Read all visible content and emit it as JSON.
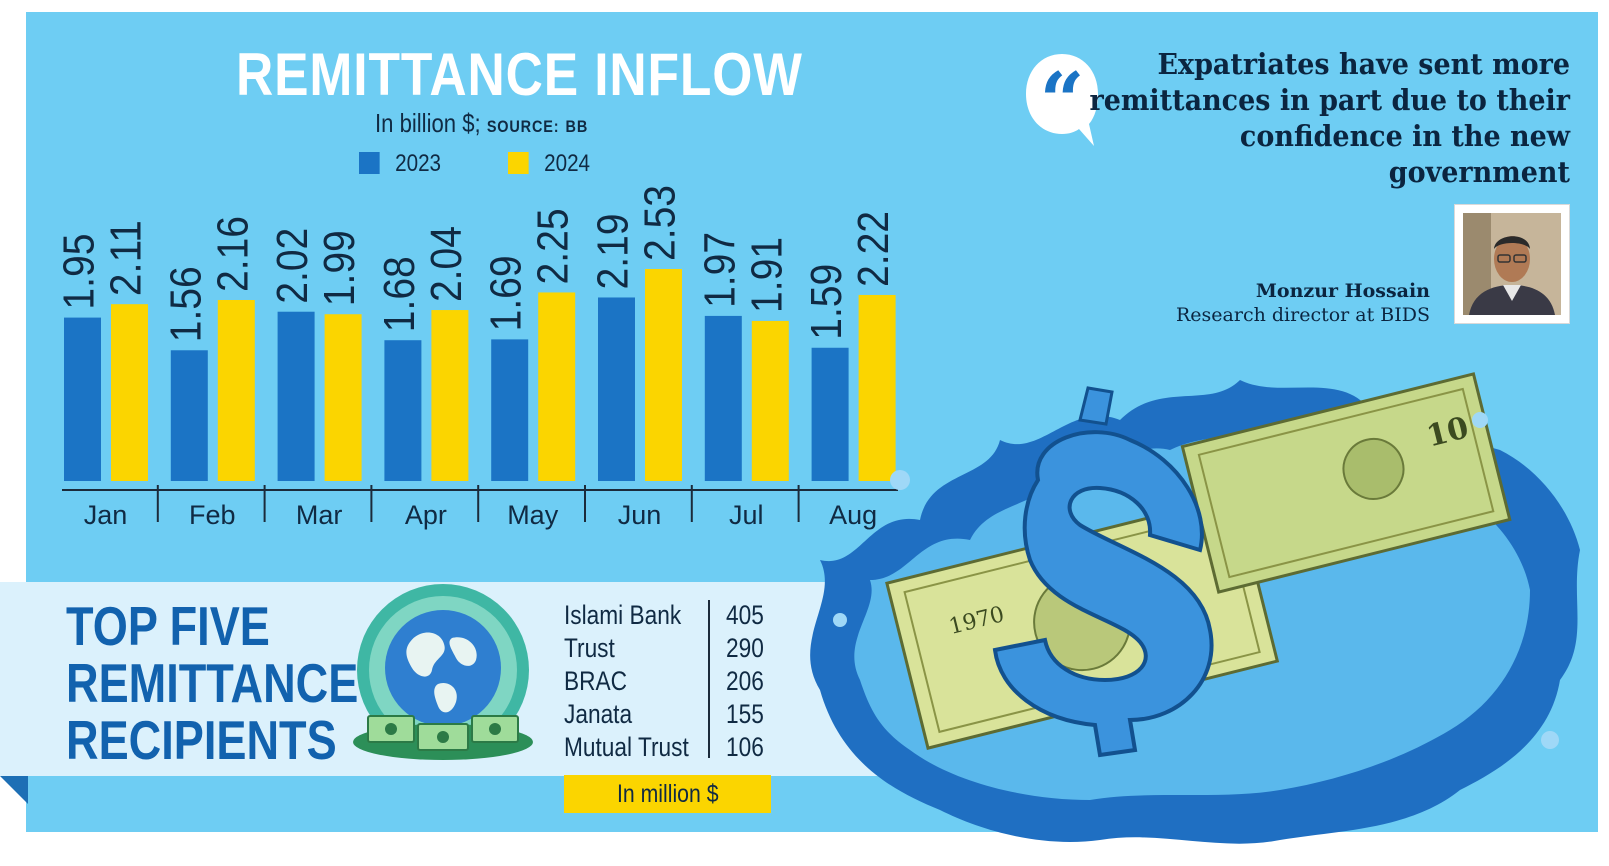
{
  "chart_data": {
    "type": "bar",
    "title": "REMITTANCE INFLOW",
    "subtitle": "In billion $;",
    "source_label": "SOURCE:",
    "source": "BB",
    "categories": [
      "Jan",
      "Feb",
      "Mar",
      "Apr",
      "May",
      "Jun",
      "Jul",
      "Aug"
    ],
    "series": [
      {
        "name": "2023",
        "color": "#1b74c5",
        "values": [
          1.95,
          1.56,
          2.02,
          1.68,
          1.69,
          2.19,
          1.97,
          1.59
        ]
      },
      {
        "name": "2024",
        "color": "#fbd500",
        "values": [
          2.11,
          2.16,
          1.99,
          2.04,
          2.25,
          2.53,
          1.91,
          2.22
        ]
      }
    ],
    "value_labels": [
      [
        "1.95",
        "1.56",
        "2.02",
        "1.68",
        "1.69",
        "2.19",
        "1.97",
        "1.59"
      ],
      [
        "2.11",
        "2.16",
        "1.99",
        "2.04",
        "2.25",
        "2.53",
        "1.91",
        "2.22"
      ]
    ],
    "ylim": [
      0,
      2.53
    ],
    "xlabel": "",
    "ylabel": "",
    "grid": false,
    "legend": "top"
  },
  "quote": {
    "text": "Expatriates have sent more remittances in part due to their confidence in the new government",
    "person_name": "Monzur Hossain",
    "person_title": "Research director at BIDS",
    "mark_icon": "quote-bubble-icon"
  },
  "recipients": {
    "title_lines": [
      "TOP FIVE",
      "REMITTANCE",
      "RECIPIENTS"
    ],
    "items": [
      {
        "name": "Islami Bank",
        "value": "405"
      },
      {
        "name": "Trust",
        "value": "290"
      },
      {
        "name": "BRAC",
        "value": "206"
      },
      {
        "name": "Janata",
        "value": "155"
      },
      {
        "name": "Mutual Trust",
        "value": "106"
      }
    ],
    "unit_note": "In million $",
    "icon": "globe-money-icon"
  },
  "colors": {
    "background": "#6ecdf3",
    "band": "#dbf1fc",
    "accent_blue": "#1b74c5",
    "accent_yellow": "#fbd500",
    "dark_blue": "#1262ae"
  }
}
